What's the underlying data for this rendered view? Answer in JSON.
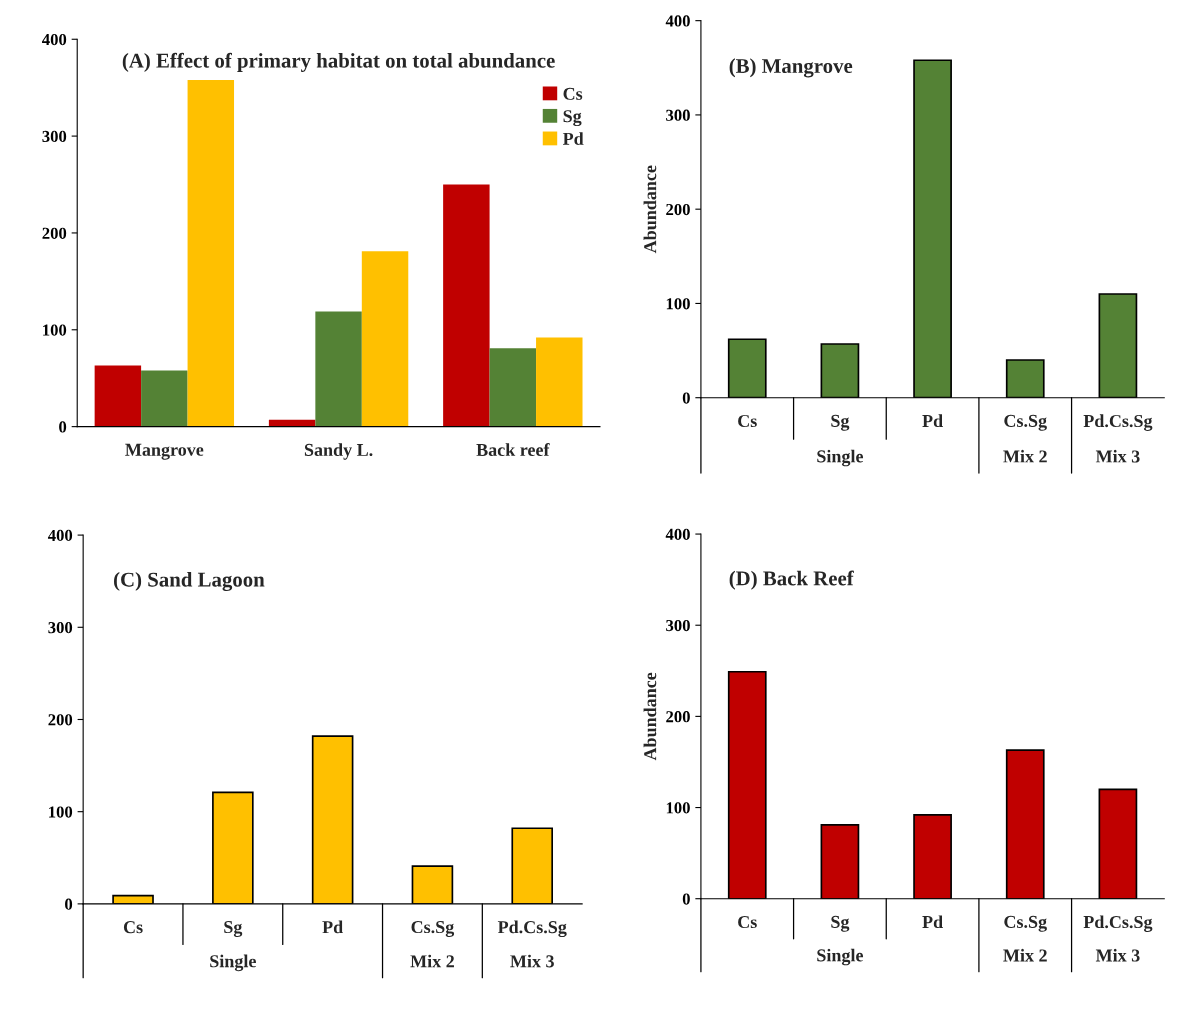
{
  "chart_data": [
    {
      "type": "bar",
      "title": "(A) Effect of primary habitat on total abundance",
      "categories": [
        "Mangrove",
        "Sandy L.",
        "Back reef"
      ],
      "ylim": [
        0,
        400
      ],
      "yticks": [
        0,
        100,
        200,
        300,
        400
      ],
      "legend": "top right",
      "grid": false,
      "series": [
        {
          "name": "Cs",
          "color": "#c00000",
          "values": [
            63,
            7,
            250
          ]
        },
        {
          "name": "Sg",
          "color": "#548235",
          "values": [
            58,
            119,
            81
          ]
        },
        {
          "name": "Pd",
          "color": "#ffc000",
          "values": [
            358,
            181,
            92
          ]
        }
      ]
    },
    {
      "type": "bar",
      "title": "(B) Mangrove",
      "ylabel": "Abundance",
      "categories": [
        "Cs",
        "Sg",
        "Pd",
        "Cs.Sg",
        "Pd.Cs.Sg"
      ],
      "values": [
        62,
        57,
        358,
        40,
        110
      ],
      "color": "#548235",
      "ylim": [
        0,
        400
      ],
      "yticks": [
        0,
        100,
        200,
        300,
        400
      ],
      "grid": false,
      "annotations": [
        "Single",
        "Mix 2",
        "Mix 3"
      ]
    },
    {
      "type": "bar",
      "title": "(C) Sand Lagoon",
      "categories": [
        "Cs",
        "Sg",
        "Pd",
        "Cs.Sg",
        "Pd.Cs.Sg"
      ],
      "values": [
        9,
        121,
        182,
        41,
        82
      ],
      "color": "#ffc000",
      "ylim": [
        0,
        400
      ],
      "yticks": [
        0,
        100,
        200,
        300,
        400
      ],
      "grid": false,
      "annotations": [
        "Single",
        "Mix 2",
        "Mix 3"
      ]
    },
    {
      "type": "bar",
      "title": "(D) Back Reef",
      "ylabel": "Abundance",
      "categories": [
        "Cs",
        "Sg",
        "Pd",
        "Cs.Sg",
        "Pd.Cs.Sg"
      ],
      "values": [
        249,
        81,
        92,
        163,
        120
      ],
      "color": "#c00000",
      "ylim": [
        0,
        400
      ],
      "yticks": [
        0,
        100,
        200,
        300,
        400
      ],
      "grid": false,
      "annotations": [
        "Single",
        "Mix 2",
        "Mix 3"
      ]
    }
  ]
}
